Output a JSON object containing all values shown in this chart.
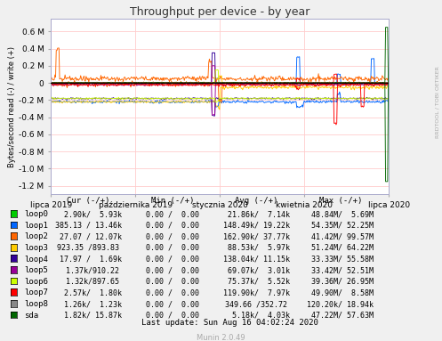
{
  "title": "Throughput per device - by year",
  "ylabel": "Bytes/second read (-) / write (+)",
  "right_label": "RRDTOOL / TOBI OETIKER",
  "watermark": "Munin 2.0.49",
  "bg_color": "#F0F0F0",
  "plot_bg": "#FFFFFF",
  "grid_color": "#FFCCCC",
  "x_tick_labels": [
    "lipca 2019",
    "października 2019",
    "stycznia 2020",
    "kwietnia 2020",
    "lipca 2020"
  ],
  "x_tick_pos": [
    0.0,
    0.25,
    0.5,
    0.75,
    1.0
  ],
  "ylim": [
    -1300000.0,
    750000.0
  ],
  "yticks": [
    -1200000.0,
    -1000000.0,
    -800000.0,
    -600000.0,
    -400000.0,
    -200000.0,
    0.0,
    200000.0,
    400000.0,
    600000.0
  ],
  "ytick_labels": [
    "-1.2 M",
    "-1.0 M",
    "-0.8 M",
    "-0.6 M",
    "-0.4 M",
    "-0.2 M",
    "0",
    "0.2 M",
    "0.4 M",
    "0.6 M"
  ],
  "devices": [
    "loop0",
    "loop1",
    "loop2",
    "loop3",
    "loop4",
    "loop5",
    "loop6",
    "loop7",
    "loop8",
    "sda"
  ],
  "colors": [
    "#00CC00",
    "#0066FF",
    "#FF6600",
    "#FFCC00",
    "#330099",
    "#990099",
    "#CCFF00",
    "#FF0000",
    "#888888",
    "#006600"
  ],
  "legend_cols": [
    "Cur (-/+)",
    "Min (-/+)",
    "Avg (-/+)",
    "Max (-/+)"
  ],
  "legend_data": [
    [
      "  2.90k/  5.93k",
      "0.00 /  0.00",
      " 21.86k/  7.14k",
      " 48.84M/  5.69M"
    ],
    [
      "385.13 / 13.46k",
      "0.00 /  0.00",
      "148.49k/ 19.22k",
      " 54.35M/ 52.25M"
    ],
    [
      " 27.07 / 12.07k",
      "0.00 /  0.00",
      "162.90k/ 37.77k",
      " 41.42M/ 99.57M"
    ],
    [
      "923.35 /893.83",
      "0.00 /  0.00",
      " 88.53k/  5.97k",
      " 51.24M/ 64.22M"
    ],
    [
      " 17.97 /  1.69k",
      "0.00 /  0.00",
      "138.04k/ 11.15k",
      " 33.33M/ 55.58M"
    ],
    [
      "  1.37k/910.22",
      "0.00 /  0.00",
      " 69.07k/  3.01k",
      " 33.42M/ 52.51M"
    ],
    [
      "  1.32k/897.65",
      "0.00 /  0.00",
      " 75.37k/  5.52k",
      " 39.36M/ 26.95M"
    ],
    [
      "  2.57k/  1.80k",
      "0.00 /  0.00",
      "119.90k/  7.97k",
      " 49.90M/  8.58M"
    ],
    [
      "  1.26k/  1.23k",
      "0.00 /  0.00",
      "349.66 /352.72",
      "120.20k/ 18.94k"
    ],
    [
      "  1.82k/ 15.87k",
      "0.00 /  0.00",
      "  5.18k/  4.03k",
      " 47.22M/ 57.63M"
    ]
  ],
  "last_update": "Last update: Sun Aug 16 04:02:24 2020"
}
